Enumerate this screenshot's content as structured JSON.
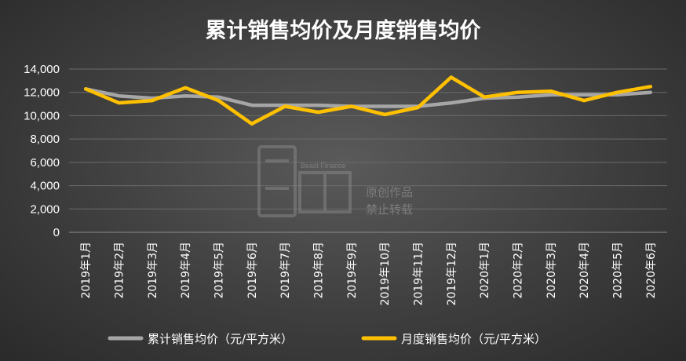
{
  "chart_data": {
    "type": "line",
    "title": "累计销售均价及月度销售均价",
    "categories": [
      "2019年1月",
      "2019年2月",
      "2019年3月",
      "2019年4月",
      "2019年5月",
      "2019年6月",
      "2019年7月",
      "2019年8月",
      "2019年9月",
      "2019年10月",
      "2019年11月",
      "2019年12月",
      "2020年1月",
      "2020年2月",
      "2020年3月",
      "2020年4月",
      "2020年5月",
      "2020年6月"
    ],
    "yticks": [
      "0",
      "2,000",
      "4,000",
      "6,000",
      "8,000",
      "10,000",
      "12,000",
      "14,000"
    ],
    "ylim": [
      0,
      14000
    ],
    "series": [
      {
        "name": "累计销售均价（元/平方米）",
        "color": "#a6a6a6",
        "values": [
          12300,
          11700,
          11500,
          11700,
          11600,
          10900,
          10900,
          10900,
          10800,
          10800,
          10800,
          11100,
          11500,
          11600,
          11800,
          11800,
          11800,
          12000
        ]
      },
      {
        "name": "月度销售均价（元/平方米）",
        "color": "#ffc000",
        "values": [
          12300,
          11100,
          11300,
          12400,
          11300,
          9300,
          10800,
          10300,
          10800,
          10100,
          10700,
          13300,
          11600,
          12000,
          12100,
          11300,
          12000,
          12500
        ]
      }
    ],
    "grid": true,
    "legend_position": "bottom"
  },
  "watermark": {
    "brand_en": "Beast Finance",
    "line1": "原创作品",
    "line2": "禁止转载"
  }
}
